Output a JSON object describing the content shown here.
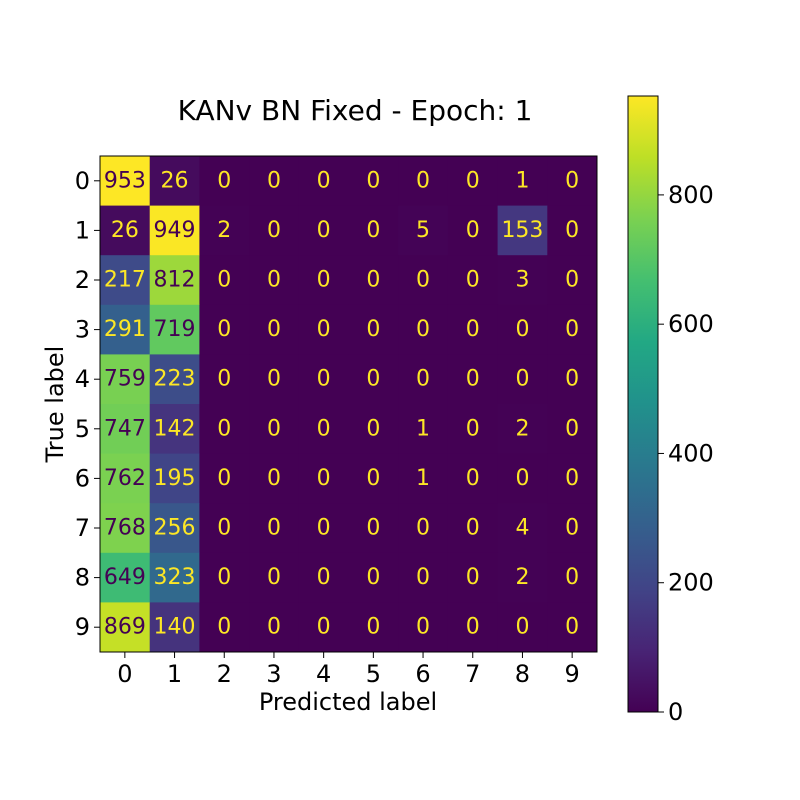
{
  "chart_data": {
    "type": "heatmap",
    "title": "KANv BN Fixed - Epoch: 1",
    "xlabel": "Predicted label",
    "ylabel": "True label",
    "x_categories": [
      "0",
      "1",
      "2",
      "3",
      "4",
      "5",
      "6",
      "7",
      "8",
      "9"
    ],
    "y_categories": [
      "0",
      "1",
      "2",
      "3",
      "4",
      "5",
      "6",
      "7",
      "8",
      "9"
    ],
    "matrix": [
      [
        953,
        26,
        0,
        0,
        0,
        0,
        0,
        0,
        1,
        0
      ],
      [
        26,
        949,
        2,
        0,
        0,
        0,
        5,
        0,
        153,
        0
      ],
      [
        217,
        812,
        0,
        0,
        0,
        0,
        0,
        0,
        3,
        0
      ],
      [
        291,
        719,
        0,
        0,
        0,
        0,
        0,
        0,
        0,
        0
      ],
      [
        759,
        223,
        0,
        0,
        0,
        0,
        0,
        0,
        0,
        0
      ],
      [
        747,
        142,
        0,
        0,
        0,
        0,
        1,
        0,
        2,
        0
      ],
      [
        762,
        195,
        0,
        0,
        0,
        0,
        1,
        0,
        0,
        0
      ],
      [
        768,
        256,
        0,
        0,
        0,
        0,
        0,
        0,
        4,
        0
      ],
      [
        649,
        323,
        0,
        0,
        0,
        0,
        0,
        0,
        2,
        0
      ],
      [
        869,
        140,
        0,
        0,
        0,
        0,
        0,
        0,
        0,
        0
      ]
    ],
    "colormap": "viridis",
    "colorbar": {
      "range": [
        0,
        953
      ],
      "ticks": [
        0,
        200,
        400,
        600,
        800
      ],
      "placement": "right"
    },
    "grid": false
  }
}
